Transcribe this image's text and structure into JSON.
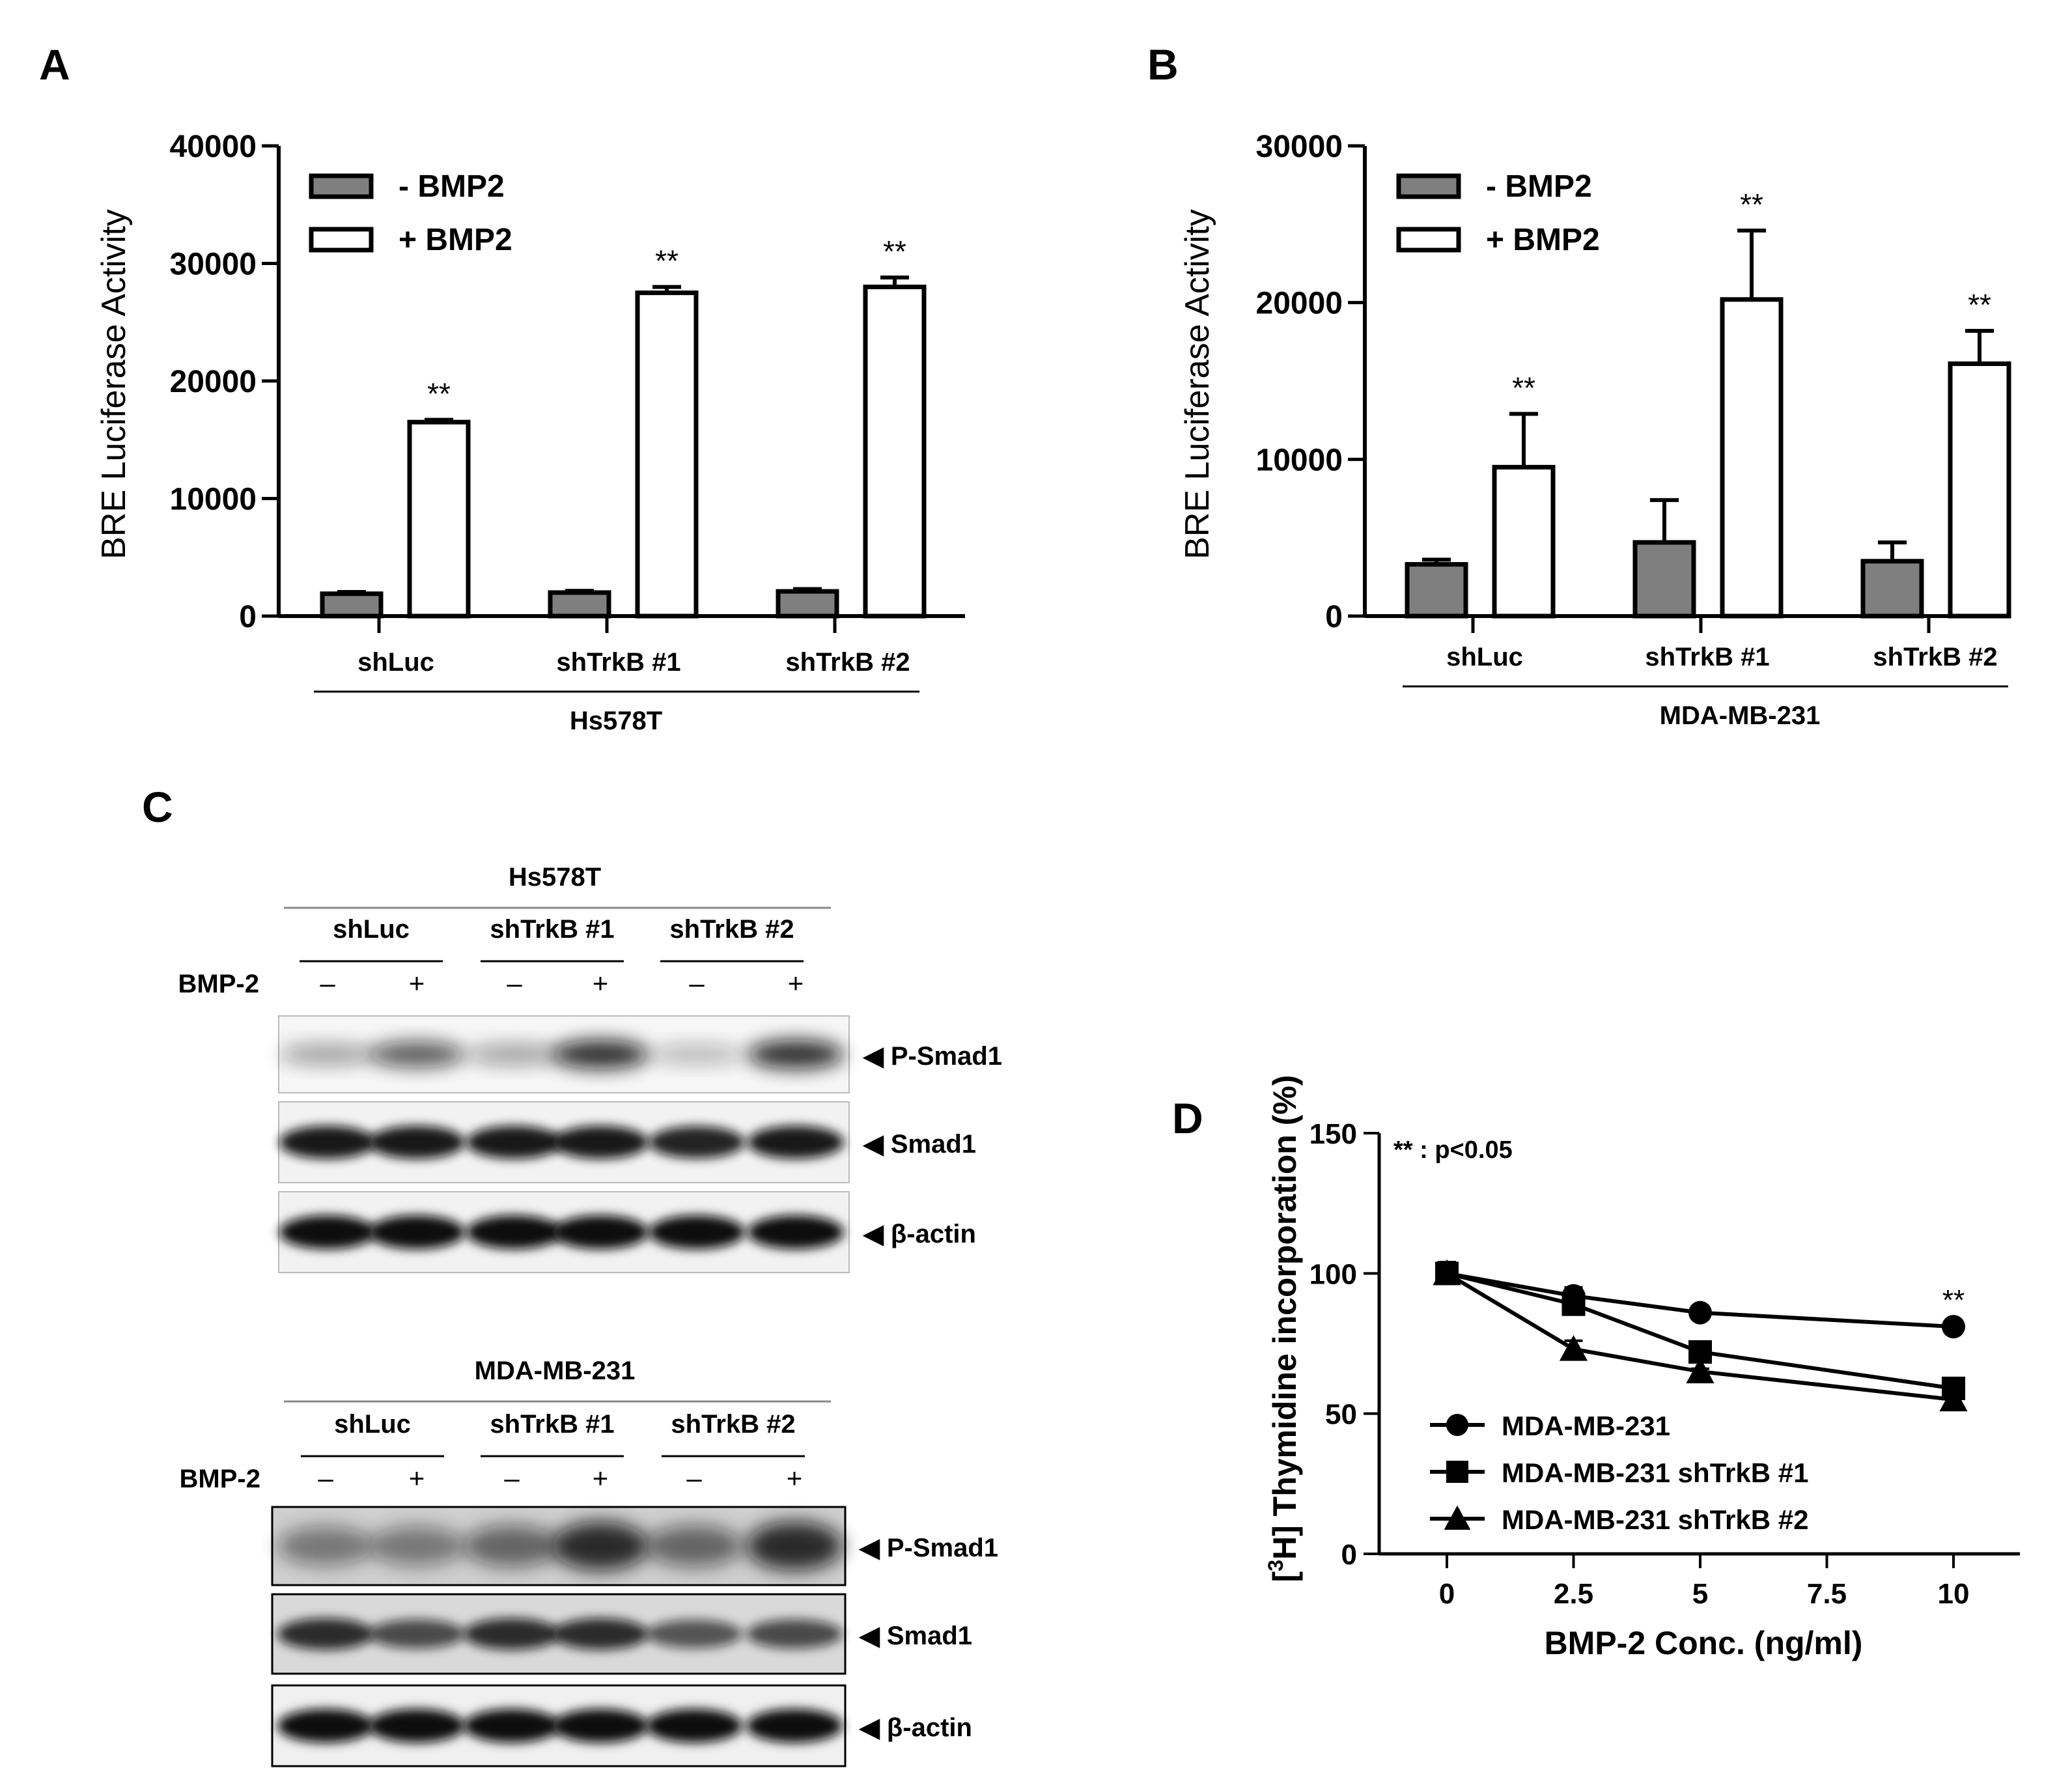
{
  "panels": {
    "A": "A",
    "B": "B",
    "C": "C",
    "D": "D"
  },
  "chart_data": [
    {
      "id": "A",
      "type": "bar",
      "ylabel": "BRE Luciferase Activity",
      "ylim": [
        0,
        40000
      ],
      "yticks": [
        "0",
        "10000",
        "20000",
        "30000",
        "40000"
      ],
      "categories": [
        "shLuc",
        "shTrkB #1",
        "shTrkB #2"
      ],
      "group_label": "Hs578T",
      "legend_position": "top-left",
      "series": [
        {
          "name": "- BMP2",
          "color": "#7f7f7f",
          "values": [
            1900,
            2000,
            2100
          ],
          "errors": [
            150,
            150,
            200
          ]
        },
        {
          "name": "+ BMP2",
          "color": "#ffffff",
          "values": [
            16500,
            27500,
            28000
          ],
          "errors": [
            200,
            500,
            800
          ]
        }
      ],
      "annotations": [
        "**",
        "**",
        "**"
      ]
    },
    {
      "id": "B",
      "type": "bar",
      "ylabel": "BRE Luciferase Activity",
      "ylim": [
        0,
        30000
      ],
      "yticks": [
        "0",
        "10000",
        "20000",
        "30000"
      ],
      "categories": [
        "shLuc",
        "shTrkB #1",
        "shTrkB #2"
      ],
      "group_label": "MDA-MB-231",
      "legend_position": "top-left",
      "series": [
        {
          "name": "- BMP2",
          "color": "#7f7f7f",
          "values": [
            3300,
            4700,
            3500
          ],
          "errors": [
            300,
            2700,
            1200
          ]
        },
        {
          "name": "+ BMP2",
          "color": "#ffffff",
          "values": [
            9500,
            20200,
            16100
          ],
          "errors": [
            3400,
            4400,
            2100
          ]
        }
      ],
      "annotations": [
        "**",
        "**",
        "**"
      ]
    },
    {
      "id": "D",
      "type": "line",
      "ylabel_main": "] Thymidine incorporation (%)",
      "ylabel_bracket": "[",
      "ylabel_sup": "3",
      "ylabel_h": "H",
      "xlabel": "BMP-2 Conc. (ng/ml)",
      "ylim": [
        0,
        150
      ],
      "yticks": [
        "0",
        "50",
        "100",
        "150"
      ],
      "x": [
        0,
        2.5,
        5,
        10
      ],
      "xticks": [
        "0",
        "2.5",
        "5",
        "7.5",
        "10"
      ],
      "legend_position": "bottom-left",
      "note": "** : p<0.05",
      "annotation": "**",
      "series": [
        {
          "name": "MDA-MB-231",
          "marker": "circle",
          "values": [
            100,
            92,
            86,
            81
          ],
          "errors": [
            3,
            3,
            1,
            1
          ]
        },
        {
          "name": "MDA-MB-231 shTrkB #1",
          "marker": "square",
          "values": [
            100,
            89,
            72,
            59
          ],
          "errors": [
            4,
            3,
            3,
            2
          ]
        },
        {
          "name": "MDA-MB-231 shTrkB #2",
          "marker": "triangle",
          "values": [
            100,
            73,
            65,
            55
          ],
          "errors": [
            2,
            3,
            1,
            2
          ]
        }
      ]
    }
  ],
  "blots": {
    "upper": {
      "cell_line": "Hs578T",
      "groups": [
        "shLuc",
        "shTrkB #1",
        "shTrkB #2"
      ],
      "treatment_label": "BMP-2",
      "signs": [
        "–",
        "+",
        "–",
        "+",
        "–",
        "+"
      ],
      "bands": [
        "◀ P-Smad1",
        "◀ Smad1",
        "◀ β-actin"
      ],
      "intensity": [
        [
          0.35,
          0.65,
          0.35,
          0.85,
          0.25,
          0.85
        ],
        [
          0.95,
          0.95,
          0.95,
          0.95,
          0.9,
          0.95
        ],
        [
          1,
          1,
          1,
          1,
          1,
          1
        ]
      ]
    },
    "lower": {
      "cell_line": "MDA-MB-231",
      "groups": [
        "shLuc",
        "shTrkB #1",
        "shTrkB #2"
      ],
      "treatment_label": "BMP-2",
      "signs": [
        "–",
        "+",
        "–",
        "+",
        "–",
        "+"
      ],
      "bands": [
        "◀ P-Smad1",
        "◀ Smad1",
        "◀ β-actin"
      ],
      "intensity": [
        [
          0.45,
          0.45,
          0.55,
          0.85,
          0.55,
          0.85
        ],
        [
          0.85,
          0.7,
          0.85,
          0.85,
          0.65,
          0.7
        ],
        [
          1,
          1,
          1,
          1,
          1,
          1
        ]
      ]
    }
  }
}
